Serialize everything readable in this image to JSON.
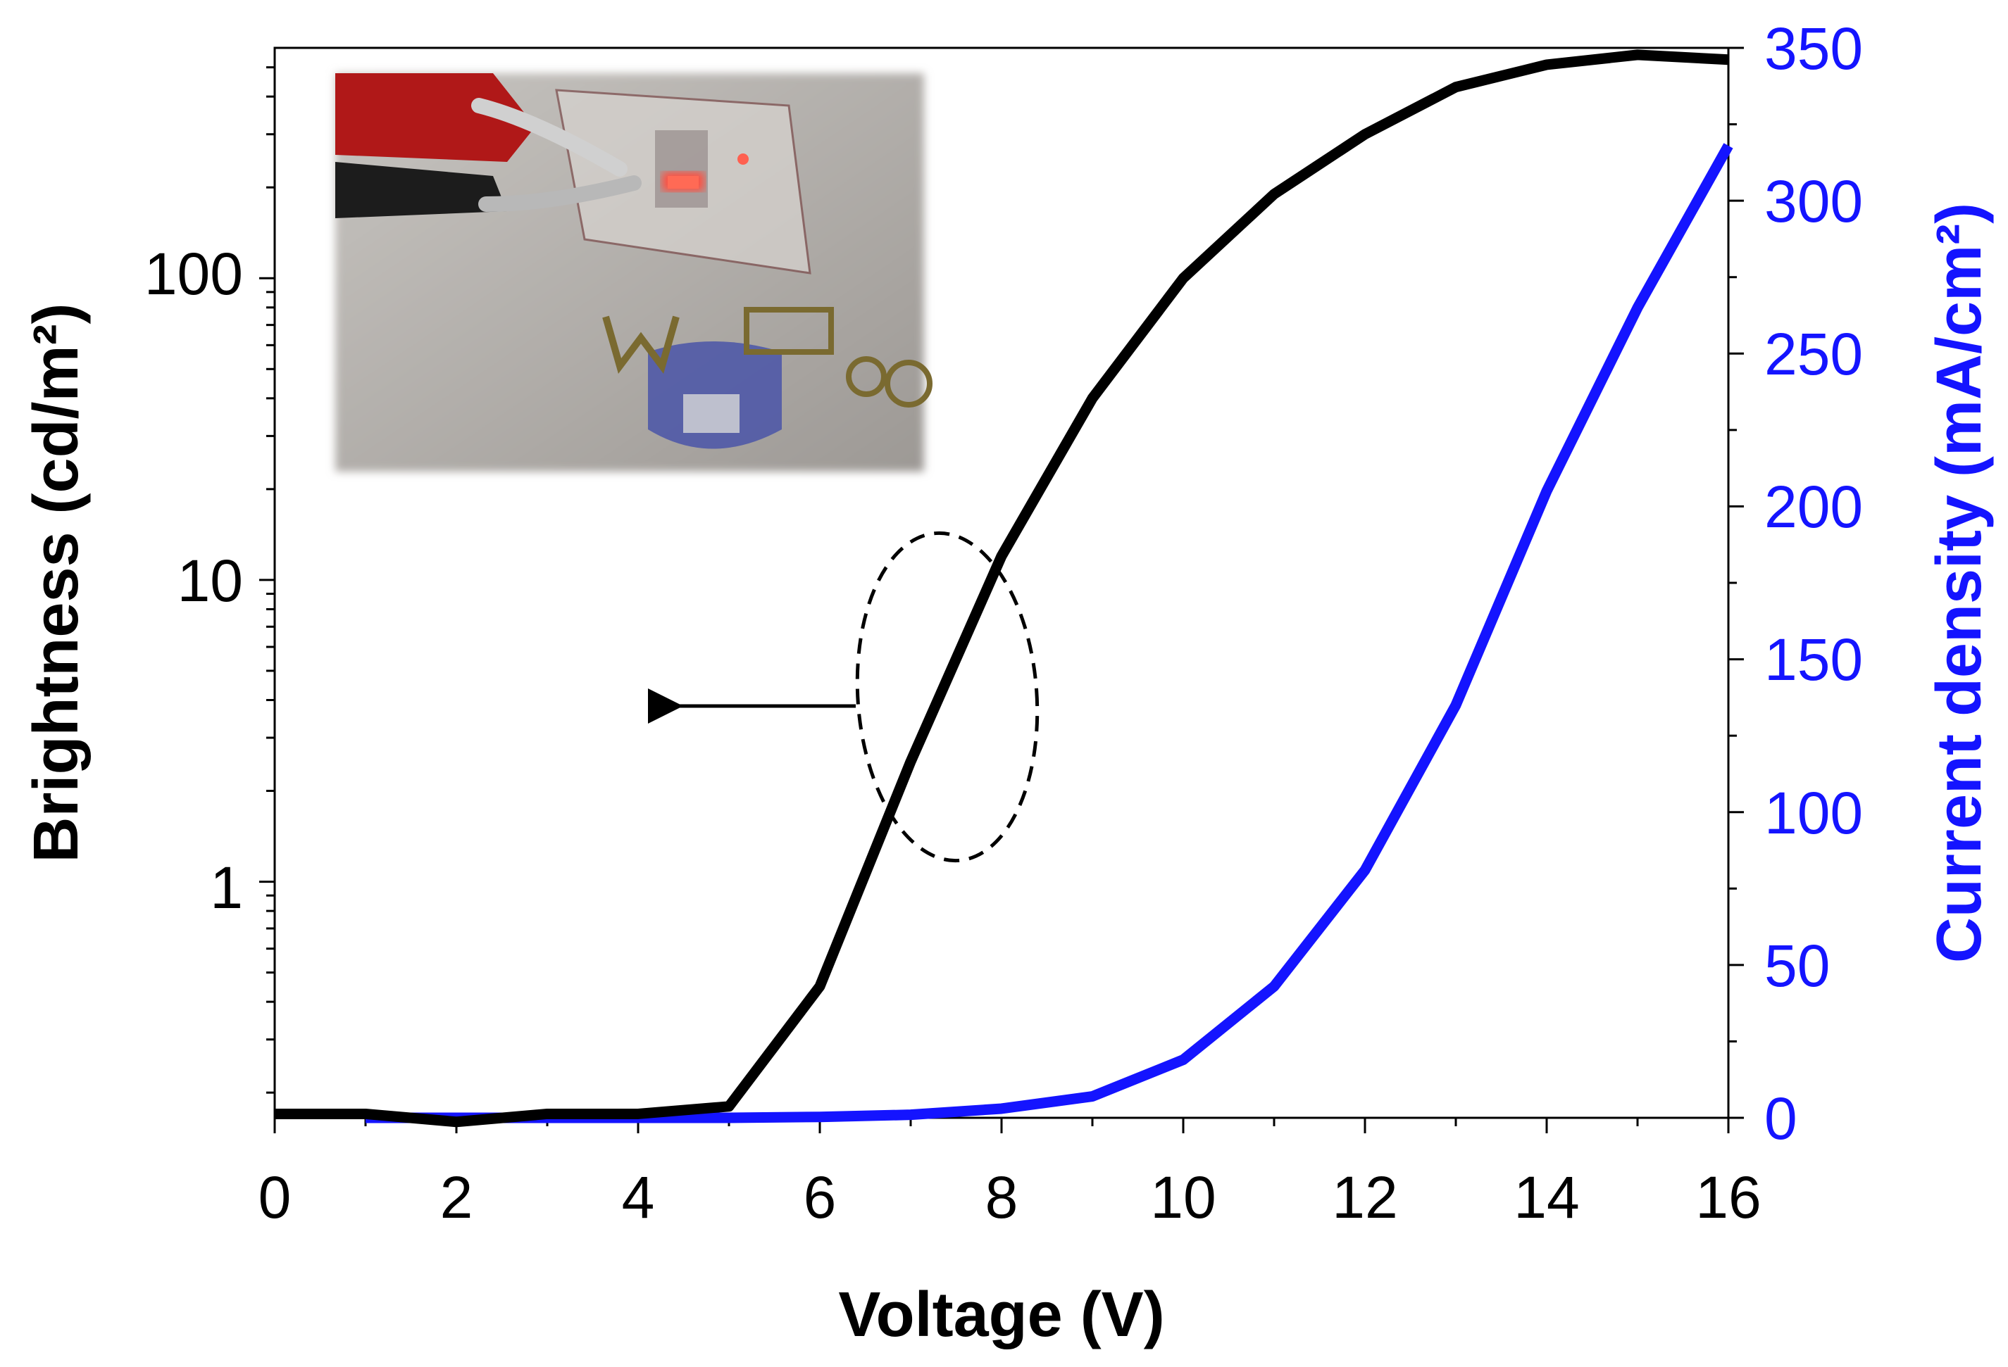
{
  "chart_data": {
    "type": "line",
    "xlabel": "Voltage (V)",
    "ylabel": "Brightness (cd/m²)",
    "y2label": "Current density (mA/cm²)",
    "xlim": [
      0,
      16
    ],
    "ylim": [
      0.165,
      580
    ],
    "yscale": "log",
    "y2lim": [
      0,
      350
    ],
    "xticks": [
      "0",
      "2",
      "4",
      "6",
      "8",
      "10",
      "12",
      "14",
      "16"
    ],
    "yticks": [
      "1",
      "10",
      "100"
    ],
    "y2ticks": [
      "0",
      "50",
      "100",
      "150",
      "200",
      "250",
      "300",
      "350"
    ],
    "grid": false,
    "colors": {
      "brightness": "#000000",
      "current": "#1414ff"
    },
    "series": [
      {
        "axis": "left",
        "x": [
          0,
          1,
          2,
          3,
          4,
          5,
          6,
          7,
          8,
          9,
          10,
          11,
          12,
          13,
          14,
          15,
          16
        ],
        "values": [
          0.17,
          0.17,
          0.16,
          0.17,
          0.17,
          0.18,
          0.45,
          2.5,
          12,
          40,
          100,
          190,
          300,
          430,
          510,
          550,
          530
        ]
      },
      {
        "axis": "right",
        "x": [
          1,
          2,
          3,
          4,
          5,
          6,
          7,
          8,
          9,
          10,
          11,
          12,
          13,
          14,
          15,
          16
        ],
        "values": [
          0,
          0,
          0,
          0,
          0,
          0.3,
          1,
          3,
          7,
          19,
          43,
          81,
          135,
          205,
          265,
          318
        ]
      }
    ],
    "annotations": [
      {
        "type": "dashed-ellipse",
        "cx": 7.4,
        "cy": 4.0
      },
      {
        "type": "arrow",
        "direction": "left",
        "from_x": 6.3,
        "to_x": 4.2,
        "y": 3.8
      },
      {
        "type": "inset-photo",
        "description_icon": "device-photo"
      }
    ]
  }
}
